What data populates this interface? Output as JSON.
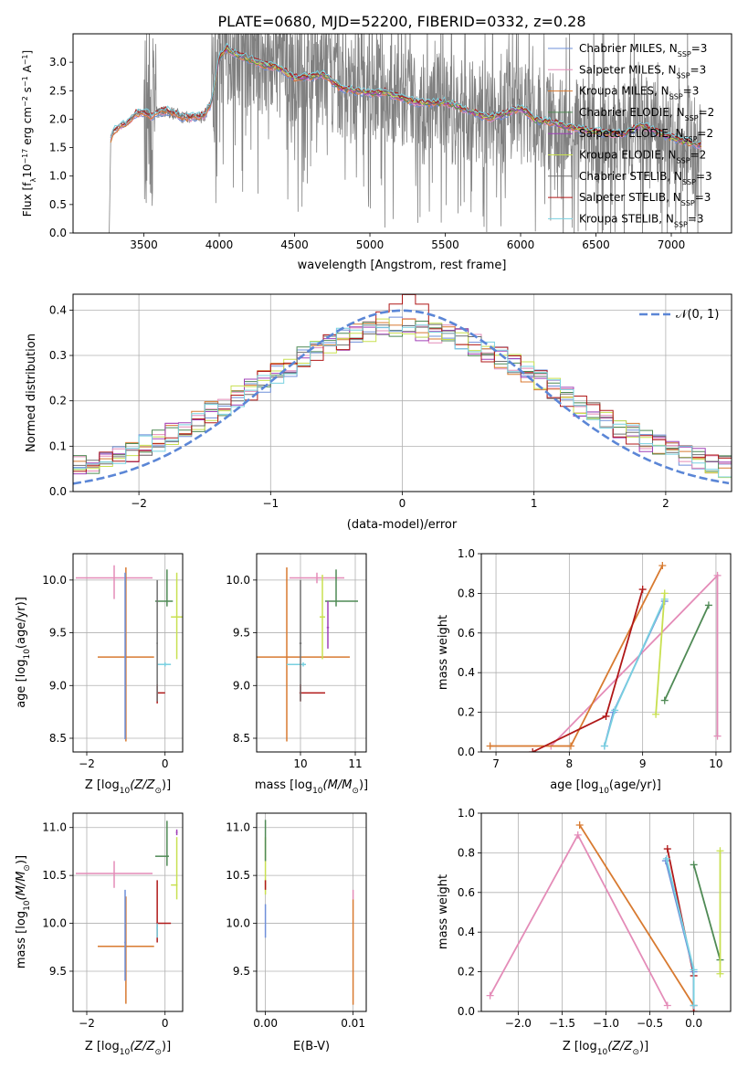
{
  "figure": {
    "title": "PLATE=0680, MJD=52200, FIBERID=0332, z=0.28"
  },
  "colors": {
    "chabrier_miles": "#6e8fd9",
    "salpeter_miles": "#e48cb8",
    "kroupa_miles": "#d87a30",
    "chabrier_elodie": "#4f8a55",
    "salpeter_elodie": "#a040b8",
    "kroupa_elodie": "#c8e050",
    "chabrier_stelib": "#707070",
    "salpeter_stelib": "#b01818",
    "kroupa_stelib": "#78d0e0",
    "data": "#808080",
    "normal": "#5b86d6"
  },
  "legend_spectrum": [
    {
      "key": "chabrier_miles",
      "pre": "Chabrier MILES, N",
      "sub": "SSP",
      "post": "=3"
    },
    {
      "key": "salpeter_miles",
      "pre": "Salpeter MILES, N",
      "sub": "SSP",
      "post": "=3"
    },
    {
      "key": "kroupa_miles",
      "pre": "Kroupa MILES, N",
      "sub": "SSP",
      "post": "=3"
    },
    {
      "key": "chabrier_elodie",
      "pre": "Chabrier ELODIE, N",
      "sub": "SSP",
      "post": "=2"
    },
    {
      "key": "salpeter_elodie",
      "pre": "Salpeter ELODIE, N",
      "sub": "SSP",
      "post": "=2"
    },
    {
      "key": "kroupa_elodie",
      "pre": "Kroupa ELODIE, N",
      "sub": "SSP",
      "post": "=2"
    },
    {
      "key": "chabrier_stelib",
      "pre": "Chabrier STELIB, N",
      "sub": "SSP",
      "post": "=3"
    },
    {
      "key": "salpeter_stelib",
      "pre": "Salpeter STELIB, N",
      "sub": "SSP",
      "post": "=3"
    },
    {
      "key": "kroupa_stelib",
      "pre": "Kroupa STELIB, N",
      "sub": "SSP",
      "post": "=3"
    }
  ],
  "chart_data": [
    {
      "id": "spectrum",
      "type": "line",
      "xlabel": "wavelength [Angstrom, rest frame]",
      "ylabel": "Flux [f",
      "xlim": [
        3030,
        7400
      ],
      "ylim": [
        0.0,
        3.5
      ],
      "xticks": [
        3500,
        4000,
        4500,
        5000,
        5500,
        6000,
        6500,
        7000
      ],
      "yticks": [
        0.0,
        0.5,
        1.0,
        1.5,
        2.0,
        2.5,
        3.0
      ],
      "grid": false,
      "legend": "top-right",
      "model_anchors": {
        "x": [
          3280,
          3300,
          3350,
          3400,
          3450,
          3500,
          3550,
          3600,
          3650,
          3700,
          3750,
          3800,
          3850,
          3900,
          3950,
          4000,
          4050,
          4100,
          4200,
          4300,
          4400,
          4500,
          4600,
          4700,
          4800,
          4900,
          5000,
          5100,
          5200,
          5300,
          5400,
          5500,
          5600,
          5700,
          5800,
          5900,
          6000,
          6100,
          6200,
          6300,
          6400,
          6500,
          6600,
          6700,
          6800,
          6900,
          7000,
          7100,
          7200
        ],
        "y": [
          1.65,
          1.8,
          1.88,
          1.95,
          2.1,
          2.12,
          2.05,
          2.12,
          2.15,
          2.1,
          2.05,
          2.02,
          2.05,
          2.05,
          2.3,
          3.1,
          3.25,
          3.15,
          3.05,
          2.95,
          2.9,
          2.72,
          2.75,
          2.78,
          2.55,
          2.5,
          2.45,
          2.48,
          2.38,
          2.3,
          2.28,
          2.3,
          2.2,
          2.1,
          2.02,
          2.1,
          2.2,
          1.98,
          1.95,
          1.88,
          1.82,
          1.78,
          1.75,
          1.75,
          1.9,
          1.78,
          1.68,
          1.6,
          1.55
        ]
      }
    },
    {
      "id": "residuals",
      "type": "step",
      "xlabel": "(data-model)/error",
      "ylabel": "Normed distribution",
      "xlim": [
        -2.5,
        2.5
      ],
      "ylim": [
        0.0,
        0.435
      ],
      "xticks": [
        -2,
        -1,
        0,
        1,
        2
      ],
      "yticks": [
        0.0,
        0.1,
        0.2,
        0.3,
        0.4
      ],
      "grid": true,
      "legend": "top-right",
      "legend_label": "𝒩(0, 1)",
      "normal": {
        "mu": 0,
        "sigma": 1
      }
    },
    {
      "id": "age_vs_Z",
      "type": "errorbar",
      "xlabel_pre": "Z [log",
      "xlabel_sub": "10",
      "xlabel_post": "(Z/Z",
      "xlabel_end": ")]",
      "ylabel_pre": "age  [log",
      "ylabel_sub": "10",
      "ylabel_post": "(age/yr)]",
      "xlim": [
        -2.35,
        0.45
      ],
      "ylim": [
        8.37,
        10.25
      ],
      "xticks": [
        -2,
        0
      ],
      "yticks": [
        8.5,
        9.0,
        9.5,
        10.0
      ],
      "grid": true,
      "points": [
        {
          "key": "salpeter_miles",
          "x": -1.3,
          "xerr": [
            0.98,
            0.98
          ],
          "y": 10.02,
          "yerr": [
            0.2,
            0.12
          ]
        },
        {
          "key": "kroupa_miles",
          "x": -1.0,
          "xerr": [
            0.72,
            0.72
          ],
          "y": 9.27,
          "yerr": [
            0.8,
            0.85
          ]
        },
        {
          "key": "chabrier_miles",
          "x": -1.02,
          "xerr": [
            0.02,
            0.02
          ],
          "y": 9.27,
          "yerr": [
            0.78,
            0.8
          ]
        },
        {
          "key": "salpeter_stelib",
          "x": -0.2,
          "xerr": [
            0.0,
            0.2
          ],
          "y": 8.93,
          "yerr": [
            0.1,
            0.08
          ]
        },
        {
          "key": "chabrier_elodie",
          "x": 0.05,
          "xerr": [
            0.3,
            0.15
          ],
          "y": 9.8,
          "yerr": [
            0.05,
            0.3
          ]
        },
        {
          "key": "kroupa_elodie",
          "x": 0.3,
          "xerr": [
            0.15,
            0.15
          ],
          "y": 9.65,
          "yerr": [
            0.4,
            0.42
          ]
        },
        {
          "key": "kroupa_stelib",
          "x": 0.0,
          "xerr": [
            0.2,
            0.15
          ],
          "y": 9.2,
          "yerr": [
            0.02,
            0.02
          ]
        },
        {
          "key": "chabrier_stelib",
          "x": -0.2,
          "xerr": [
            0.02,
            0.02
          ],
          "y": 9.4,
          "yerr": [
            0.55,
            0.6
          ]
        }
      ]
    },
    {
      "id": "age_vs_mass",
      "type": "errorbar",
      "xlabel_pre": "mass [log",
      "xlabel_sub": "10",
      "xlabel_post": "(M/M",
      "xlabel_end": ")]",
      "xlim": [
        9.2,
        11.2
      ],
      "ylim": [
        8.37,
        10.25
      ],
      "xticks": [
        10,
        11
      ],
      "yticks": [
        8.5,
        9.0,
        9.5,
        10.0
      ],
      "grid": true,
      "points": [
        {
          "key": "salpeter_miles",
          "x": 10.3,
          "xerr": [
            0.5,
            0.5
          ],
          "y": 10.02,
          "yerr": [
            0.05,
            0.05
          ]
        },
        {
          "key": "kroupa_miles",
          "x": 9.75,
          "xerr": [
            0.55,
            1.15
          ],
          "y": 9.27,
          "yerr": [
            0.8,
            0.85
          ]
        },
        {
          "key": "salpeter_stelib",
          "x": 10.0,
          "xerr": [
            0.02,
            0.45
          ],
          "y": 8.93,
          "yerr": [
            0.08,
            0.08
          ]
        },
        {
          "key": "chabrier_elodie",
          "x": 10.65,
          "xerr": [
            0.2,
            0.4
          ],
          "y": 9.8,
          "yerr": [
            0.05,
            0.3
          ]
        },
        {
          "key": "kroupa_elodie",
          "x": 10.4,
          "xerr": [
            0.05,
            0.05
          ],
          "y": 9.65,
          "yerr": [
            0.4,
            0.4
          ]
        },
        {
          "key": "kroupa_stelib",
          "x": 10.05,
          "xerr": [
            0.3,
            0.05
          ],
          "y": 9.2,
          "yerr": [
            0.02,
            0.02
          ]
        },
        {
          "key": "chabrier_stelib",
          "x": 10.0,
          "xerr": [
            0.02,
            0.02
          ],
          "y": 9.4,
          "yerr": [
            0.55,
            0.6
          ]
        },
        {
          "key": "salpeter_elodie",
          "x": 10.5,
          "xerr": [
            0.02,
            0.02
          ],
          "y": 9.55,
          "yerr": [
            0.2,
            0.25
          ]
        }
      ]
    },
    {
      "id": "massweight_vs_age",
      "type": "line",
      "xlabel_pre": "age  [log",
      "xlabel_sub": "10",
      "xlabel_post": "(age/yr)]",
      "ylabel": "mass weight",
      "xlim": [
        6.8,
        10.2
      ],
      "ylim": [
        0.0,
        1.0
      ],
      "xticks": [
        7,
        8,
        9,
        10
      ],
      "yticks": [
        0.0,
        0.2,
        0.4,
        0.6,
        0.8,
        1.0
      ],
      "grid": true,
      "series": [
        {
          "key": "salpeter_miles",
          "x": [
            7.75,
            10.02,
            10.02
          ],
          "y": [
            0.03,
            0.89,
            0.08
          ]
        },
        {
          "key": "kroupa_miles",
          "x": [
            6.92,
            8.02,
            9.27
          ],
          "y": [
            0.03,
            0.03,
            0.94
          ]
        },
        {
          "key": "salpeter_stelib",
          "x": [
            7.5,
            8.5,
            9.0
          ],
          "y": [
            0.0,
            0.18,
            0.82
          ]
        },
        {
          "key": "chabrier_miles",
          "x": [
            8.48,
            8.6,
            9.3
          ],
          "y": [
            0.03,
            0.2,
            0.76
          ]
        },
        {
          "key": "kroupa_stelib",
          "x": [
            8.48,
            8.62,
            9.3
          ],
          "y": [
            0.03,
            0.21,
            0.77
          ]
        },
        {
          "key": "chabrier_elodie",
          "x": [
            9.3,
            9.9
          ],
          "y": [
            0.26,
            0.74
          ]
        },
        {
          "key": "kroupa_elodie",
          "x": [
            9.18,
            9.3
          ],
          "y": [
            0.19,
            0.8
          ]
        }
      ]
    },
    {
      "id": "mass_vs_Z",
      "type": "errorbar",
      "xlabel_pre": "Z [log",
      "xlabel_sub": "10",
      "xlabel_post": "(Z/Z",
      "xlabel_end": ")]",
      "ylabel_pre": "mass [log",
      "ylabel_sub": "10",
      "ylabel_post": "(M/M",
      "ylabel_end": ")]",
      "xlim": [
        -2.35,
        0.45
      ],
      "ylim": [
        9.08,
        11.15
      ],
      "xticks": [
        -2,
        0
      ],
      "yticks": [
        9.5,
        10.0,
        10.5,
        11.0
      ],
      "grid": true,
      "points": [
        {
          "key": "salpeter_miles",
          "x": -1.3,
          "xerr": [
            0.98,
            0.98
          ],
          "y": 10.52,
          "yerr": [
            0.15,
            0.13
          ]
        },
        {
          "key": "kroupa_miles",
          "x": -1.0,
          "xerr": [
            0.72,
            0.72
          ],
          "y": 9.76,
          "yerr": [
            0.6,
            0.52
          ]
        },
        {
          "key": "chabrier_miles",
          "x": -1.02,
          "xerr": [
            0.02,
            0.02
          ],
          "y": 9.8,
          "yerr": [
            0.4,
            0.55
          ]
        },
        {
          "key": "salpeter_stelib",
          "x": -0.2,
          "xerr": [
            0.02,
            0.35
          ],
          "y": 10.0,
          "yerr": [
            0.2,
            0.45
          ]
        },
        {
          "key": "chabrier_elodie",
          "x": 0.05,
          "xerr": [
            0.3,
            0.05
          ],
          "y": 10.7,
          "yerr": [
            0.1,
            0.37
          ]
        },
        {
          "key": "kroupa_elodie",
          "x": 0.3,
          "xerr": [
            0.15,
            0.02
          ],
          "y": 10.4,
          "yerr": [
            0.15,
            0.5
          ]
        },
        {
          "key": "kroupa_stelib",
          "x": -0.2,
          "xerr": [
            0.02,
            0.02
          ],
          "y": 9.95,
          "yerr": [
            0.1,
            0.05
          ]
        },
        {
          "key": "salpeter_elodie",
          "x": 0.3,
          "xerr": [
            0.02,
            0.02
          ],
          "y": 10.95,
          "yerr": [
            0.03,
            0.03
          ]
        }
      ]
    },
    {
      "id": "mass_vs_EBV",
      "type": "errorbar",
      "xlabel": "E(B-V)",
      "xlim": [
        -0.001,
        0.0115
      ],
      "ylim": [
        9.08,
        11.15
      ],
      "xticks": [
        0.0,
        0.01
      ],
      "xticklabels": [
        "0.00",
        "0.01"
      ],
      "yticks": [
        9.5,
        10.0,
        10.5,
        11.0
      ],
      "grid": true,
      "points": [
        {
          "key": "kroupa_elodie",
          "x": 0.0,
          "xerr": [
            0,
            0
          ],
          "y": 10.6,
          "yerr": [
            0.3,
            0.3
          ]
        },
        {
          "key": "chabrier_elodie",
          "x": 0.0,
          "xerr": [
            0,
            0
          ],
          "y": 10.8,
          "yerr": [
            0.15,
            0.28
          ]
        },
        {
          "key": "chabrier_miles",
          "x": 0.0,
          "xerr": [
            0,
            0
          ],
          "y": 10.0,
          "yerr": [
            0.15,
            0.2
          ]
        },
        {
          "key": "salpeter_stelib",
          "x": 0.0,
          "xerr": [
            0,
            0
          ],
          "y": 10.4,
          "yerr": [
            0.05,
            0.05
          ]
        },
        {
          "key": "kroupa_miles",
          "x": 0.01,
          "xerr": [
            0,
            0
          ],
          "y": 9.7,
          "yerr": [
            0.55,
            0.55
          ]
        },
        {
          "key": "salpeter_miles",
          "x": 0.01,
          "xerr": [
            0,
            0
          ],
          "y": 10.3,
          "yerr": [
            0.05,
            0.05
          ]
        }
      ]
    },
    {
      "id": "massweight_vs_Z",
      "type": "line",
      "xlabel_pre": "Z [log",
      "xlabel_sub": "10",
      "xlabel_post": "(Z/Z",
      "xlabel_end": ")]",
      "ylabel": "mass weight",
      "xlim": [
        -2.42,
        0.42
      ],
      "ylim": [
        0.0,
        1.0
      ],
      "xticks": [
        -2.0,
        -1.5,
        -1.0,
        -0.5,
        0.0
      ],
      "xticklabels": [
        "−2.0",
        "−1.5",
        "−1.0",
        "−0.5",
        "0.0"
      ],
      "yticks": [
        0.0,
        0.2,
        0.4,
        0.6,
        0.8,
        1.0
      ],
      "grid": true,
      "series": [
        {
          "key": "salpeter_miles",
          "x": [
            -2.32,
            -1.32,
            -0.3
          ],
          "y": [
            0.08,
            0.89,
            0.03
          ]
        },
        {
          "key": "kroupa_miles",
          "x": [
            -1.3,
            0.0
          ],
          "y": [
            0.94,
            0.03
          ]
        },
        {
          "key": "salpeter_stelib",
          "x": [
            -0.3,
            0.0,
            0.0
          ],
          "y": [
            0.82,
            0.18,
            0.0
          ]
        },
        {
          "key": "chabrier_miles",
          "x": [
            -0.32,
            0.0,
            0.0
          ],
          "y": [
            0.76,
            0.2,
            0.03
          ]
        },
        {
          "key": "kroupa_stelib",
          "x": [
            -0.31,
            0.0,
            0.0
          ],
          "y": [
            0.77,
            0.21,
            0.03
          ]
        },
        {
          "key": "chabrier_elodie",
          "x": [
            0.0,
            0.3
          ],
          "y": [
            0.74,
            0.26
          ]
        },
        {
          "key": "kroupa_elodie",
          "x": [
            0.3,
            0.3
          ],
          "y": [
            0.81,
            0.19
          ]
        }
      ]
    }
  ]
}
